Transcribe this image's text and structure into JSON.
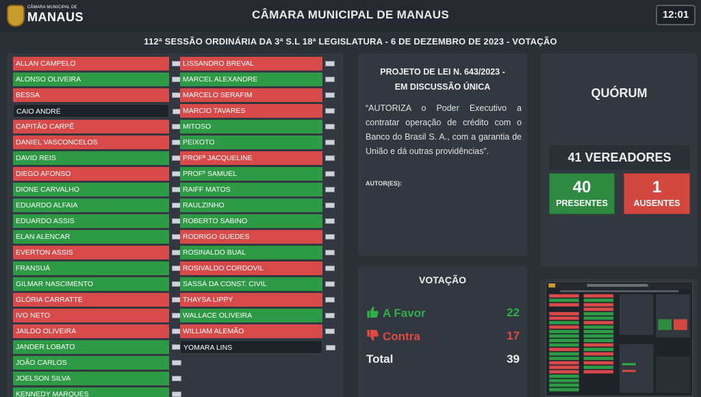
{
  "header": {
    "logo_small": "CÂMARA MUNICIPAL DE",
    "logo_big": "MANAUS",
    "title": "CÂMARA MUNICIPAL DE MANAUS",
    "clock": "12:01",
    "subtitle": "112ª SESSÃO ORDINÁRIA DA 3ª S.L 18ª LEGISLATURA - 6 DE DEZEMBRO DE 2023 - VOTAÇÃO"
  },
  "colors": {
    "favor": "#2e9a45",
    "contra": "#d8494a",
    "neutral": "#1e2229"
  },
  "vereadores_col1": [
    {
      "name": "ALLAN CAMPELO",
      "vote": "contra"
    },
    {
      "name": "ALONSO OLIVEIRA",
      "vote": "favor"
    },
    {
      "name": "BESSA",
      "vote": "contra"
    },
    {
      "name": "CAIO ANDRÉ",
      "vote": "neutral"
    },
    {
      "name": "CAPITÃO CARPÊ",
      "vote": "contra"
    },
    {
      "name": "DANIEL VASCONCELOS",
      "vote": "contra"
    },
    {
      "name": "DAVID REIS",
      "vote": "favor"
    },
    {
      "name": "DIEGO AFONSO",
      "vote": "contra"
    },
    {
      "name": "DIONE CARVALHO",
      "vote": "favor"
    },
    {
      "name": "EDUARDO ALFAIA",
      "vote": "favor"
    },
    {
      "name": "EDUARDO ASSIS",
      "vote": "favor"
    },
    {
      "name": "ELAN ALENCAR",
      "vote": "favor"
    },
    {
      "name": "EVERTON ASSIS",
      "vote": "contra"
    },
    {
      "name": "FRANSUÁ",
      "vote": "favor"
    },
    {
      "name": "GILMAR NASCIMENTO",
      "vote": "favor"
    },
    {
      "name": "GLÓRIA CARRATTE",
      "vote": "contra"
    },
    {
      "name": "IVO NETO",
      "vote": "contra"
    },
    {
      "name": "JAILDO OLIVEIRA",
      "vote": "contra"
    },
    {
      "name": "JANDER LOBATO",
      "vote": "favor"
    },
    {
      "name": "JOÃO CARLOS",
      "vote": "favor"
    },
    {
      "name": "JOELSON SILVA",
      "vote": "favor"
    },
    {
      "name": "KENNEDY MARQUES",
      "vote": "favor"
    }
  ],
  "vereadores_col2": [
    {
      "name": "LISSANDRO BREVAL",
      "vote": "contra"
    },
    {
      "name": "MARCEL ALEXANDRE",
      "vote": "favor"
    },
    {
      "name": "MARCELO SERAFIM",
      "vote": "contra"
    },
    {
      "name": "MARCIO TAVARES",
      "vote": "contra"
    },
    {
      "name": "MITOSO",
      "vote": "favor"
    },
    {
      "name": "PEIXOTO",
      "vote": "favor"
    },
    {
      "name": "PROFª JACQUELINE",
      "vote": "contra"
    },
    {
      "name": "PROFº SAMUEL",
      "vote": "favor"
    },
    {
      "name": "RAIFF MATOS",
      "vote": "favor"
    },
    {
      "name": "RAULZINHO",
      "vote": "favor"
    },
    {
      "name": "ROBERTO SABINO",
      "vote": "favor"
    },
    {
      "name": "RODRIGO GUEDES",
      "vote": "contra"
    },
    {
      "name": "ROSINALDO BUAL",
      "vote": "favor"
    },
    {
      "name": "ROSIVALDO CORDOVIL",
      "vote": "contra"
    },
    {
      "name": "SASSÁ DA CONST. CIVIL",
      "vote": "favor"
    },
    {
      "name": "THAYSA LIPPY",
      "vote": "contra"
    },
    {
      "name": "WALLACE OLIVEIRA",
      "vote": "favor"
    },
    {
      "name": "WILLIAM ALEMÃO",
      "vote": "contra"
    },
    {
      "name": "YOMARA LINS",
      "vote": "neutral"
    }
  ],
  "projeto": {
    "title_line1": "PROJETO DE LEI N. 643/2023 -",
    "title_line2": "EM DISCUSSÃO ÚNICA",
    "description": "“AUTORIZA o Poder Executivo a contratar operação de crédito com o Banco do Brasil S. A., com a garantia de União e dá outras providências”.",
    "author_label": "AUTOR(ES):"
  },
  "quorum": {
    "title": "QUÓRUM",
    "total_label": "41 VEREADORES",
    "presentes_value": "40",
    "presentes_label": "PRESENTES",
    "ausentes_value": "1",
    "ausentes_label": "AUSENTES"
  },
  "votacao": {
    "title": "VOTAÇÃO",
    "favor_label": "A Favor",
    "favor_value": "22",
    "contra_label": "Contra",
    "contra_value": "17",
    "total_label": "Total",
    "total_value": "39"
  },
  "icons": {
    "thumbs_up": "thumbs-up-icon",
    "thumbs_down": "thumbs-down-icon",
    "party_flag": "party-flag-icon",
    "logo": "camara-logo-icon"
  }
}
